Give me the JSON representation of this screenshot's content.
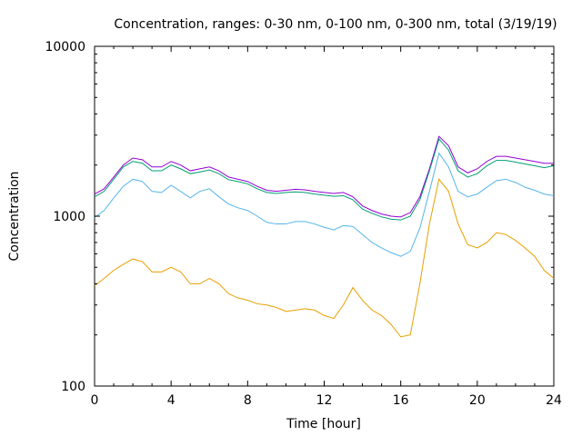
{
  "chart_data": {
    "type": "line",
    "title": "Concentration, ranges: 0-30 nm, 0-100 nm, 0-300 nm, total (3/19/19)",
    "xlabel": "Time [hour]",
    "ylabel": "Concentration",
    "xlim": [
      0,
      24
    ],
    "ylim": [
      100,
      10000
    ],
    "yscale": "log",
    "grid": false,
    "legend": "none",
    "x_ticks": [
      0,
      4,
      8,
      12,
      16,
      20,
      24
    ],
    "y_ticks": [
      100,
      1000,
      10000
    ],
    "x": [
      0,
      0.5,
      1,
      1.5,
      2,
      2.5,
      3,
      3.5,
      4,
      4.5,
      5,
      5.5,
      6,
      6.5,
      7,
      7.5,
      8,
      8.5,
      9,
      9.5,
      10,
      10.5,
      11,
      11.5,
      12,
      12.5,
      13,
      13.5,
      14,
      14.5,
      15,
      15.5,
      16,
      16.5,
      17,
      17.5,
      18,
      18.5,
      19,
      19.5,
      20,
      20.5,
      21,
      21.5,
      22,
      22.5,
      23,
      23.5,
      24
    ],
    "series": [
      {
        "color": "#9400d3",
        "values": [
          1350,
          1450,
          1700,
          2000,
          2200,
          2150,
          1950,
          1950,
          2100,
          2000,
          1850,
          1900,
          1950,
          1850,
          1700,
          1650,
          1600,
          1500,
          1420,
          1400,
          1420,
          1440,
          1430,
          1400,
          1380,
          1360,
          1380,
          1300,
          1150,
          1080,
          1030,
          1000,
          990,
          1050,
          1300,
          1900,
          2950,
          2600,
          1950,
          1800,
          1900,
          2100,
          2250,
          2250,
          2200,
          2150,
          2100,
          2050,
          2050
        ]
      },
      {
        "color": "#009e73",
        "values": [
          1300,
          1400,
          1650,
          1950,
          2100,
          2050,
          1850,
          1850,
          2000,
          1900,
          1780,
          1820,
          1870,
          1780,
          1640,
          1600,
          1550,
          1450,
          1380,
          1360,
          1380,
          1390,
          1380,
          1350,
          1330,
          1310,
          1320,
          1250,
          1100,
          1040,
          990,
          960,
          950,
          1000,
          1250,
          1850,
          2850,
          2450,
          1850,
          1700,
          1780,
          1980,
          2130,
          2130,
          2080,
          2030,
          1980,
          1930,
          1980
        ]
      },
      {
        "color": "#56b4e9",
        "values": [
          980,
          1080,
          1280,
          1500,
          1650,
          1600,
          1400,
          1380,
          1520,
          1400,
          1280,
          1400,
          1450,
          1300,
          1180,
          1120,
          1080,
          1000,
          920,
          900,
          900,
          930,
          930,
          900,
          860,
          830,
          880,
          870,
          780,
          700,
          650,
          610,
          580,
          620,
          850,
          1400,
          2350,
          1950,
          1400,
          1300,
          1350,
          1480,
          1620,
          1650,
          1580,
          1480,
          1420,
          1350,
          1320
        ]
      },
      {
        "color": "#e69f00",
        "values": [
          390,
          430,
          480,
          520,
          560,
          540,
          470,
          470,
          500,
          470,
          400,
          400,
          430,
          400,
          350,
          330,
          320,
          305,
          300,
          290,
          275,
          280,
          285,
          280,
          260,
          250,
          300,
          380,
          320,
          280,
          260,
          230,
          195,
          200,
          400,
          900,
          1650,
          1400,
          900,
          680,
          650,
          700,
          800,
          780,
          720,
          650,
          580,
          480,
          430
        ]
      }
    ]
  }
}
